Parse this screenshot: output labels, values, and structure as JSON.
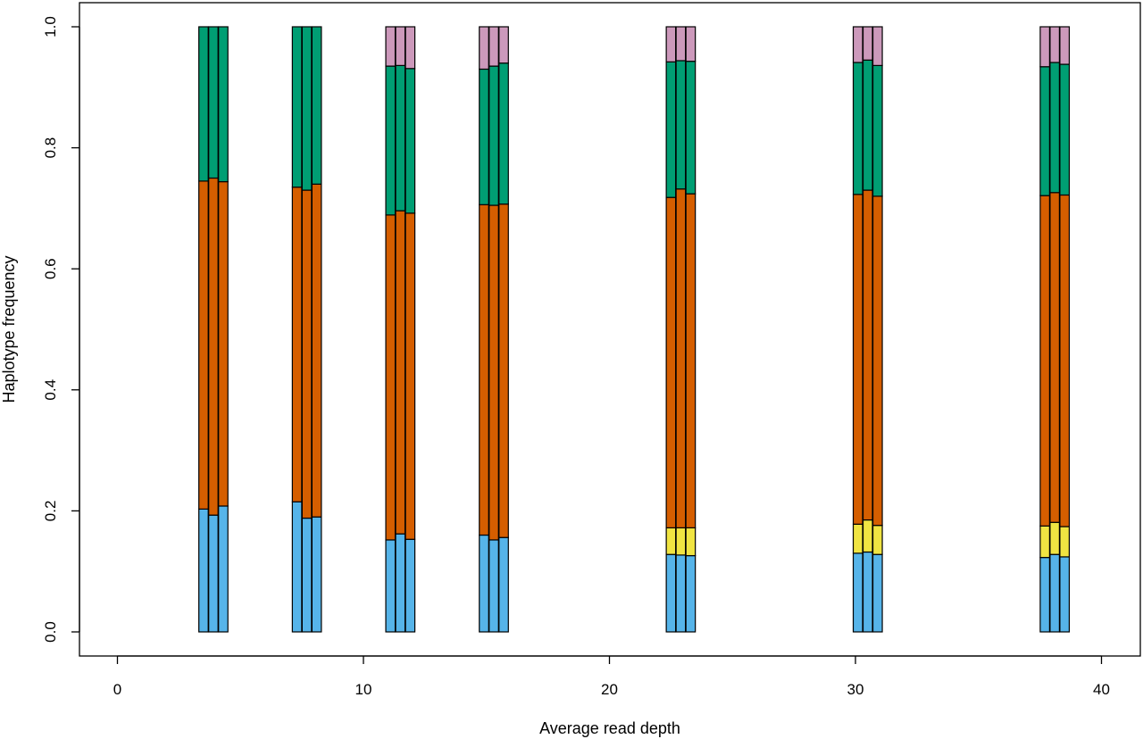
{
  "chart_data": {
    "type": "bar",
    "subtype": "stacked-grouped",
    "title": "",
    "xlabel": "Average read depth",
    "ylabel": "Haplotype frequency",
    "xlim": [
      0,
      40
    ],
    "ylim": [
      0,
      1
    ],
    "x_ticks": [
      "0",
      "10",
      "20",
      "30",
      "40"
    ],
    "y_ticks": [
      "0.0",
      "0.2",
      "0.4",
      "0.6",
      "0.8",
      "1.0"
    ],
    "grid": false,
    "legend": "none",
    "colors": [
      "#56B4E9",
      "#F0E442",
      "#D55E00",
      "#009E73",
      "#CC99BB"
    ],
    "replicate_offsets": [
      -0.4,
      0,
      0.4
    ],
    "groups": [
      {
        "x": 3.9,
        "bars": [
          [
            0.203,
            0,
            0.542,
            0.255,
            0
          ],
          [
            0.193,
            0,
            0.557,
            0.25,
            0
          ],
          [
            0.208,
            0,
            0.536,
            0.256,
            0
          ]
        ]
      },
      {
        "x": 7.7,
        "bars": [
          [
            0.215,
            0,
            0.52,
            0.265,
            0
          ],
          [
            0.188,
            0,
            0.542,
            0.27,
            0
          ],
          [
            0.19,
            0,
            0.55,
            0.26,
            0
          ]
        ]
      },
      {
        "x": 11.5,
        "bars": [
          [
            0.152,
            0,
            0.537,
            0.246,
            0.065
          ],
          [
            0.162,
            0,
            0.534,
            0.24,
            0.064
          ],
          [
            0.153,
            0,
            0.539,
            0.239,
            0.069
          ]
        ]
      },
      {
        "x": 15.3,
        "bars": [
          [
            0.16,
            0,
            0.546,
            0.224,
            0.07
          ],
          [
            0.152,
            0,
            0.553,
            0.23,
            0.065
          ],
          [
            0.156,
            0,
            0.551,
            0.233,
            0.06
          ]
        ]
      },
      {
        "x": 22.9,
        "bars": [
          [
            0.128,
            0.044,
            0.546,
            0.224,
            0.058
          ],
          [
            0.127,
            0.045,
            0.56,
            0.212,
            0.056
          ],
          [
            0.126,
            0.046,
            0.552,
            0.219,
            0.057
          ]
        ]
      },
      {
        "x": 30.5,
        "bars": [
          [
            0.13,
            0.048,
            0.545,
            0.218,
            0.059
          ],
          [
            0.132,
            0.053,
            0.545,
            0.215,
            0.055
          ],
          [
            0.128,
            0.048,
            0.544,
            0.216,
            0.064
          ]
        ]
      },
      {
        "x": 38.1,
        "bars": [
          [
            0.123,
            0.052,
            0.546,
            0.213,
            0.066
          ],
          [
            0.128,
            0.053,
            0.545,
            0.215,
            0.059
          ],
          [
            0.124,
            0.05,
            0.548,
            0.216,
            0.062
          ]
        ]
      }
    ]
  }
}
